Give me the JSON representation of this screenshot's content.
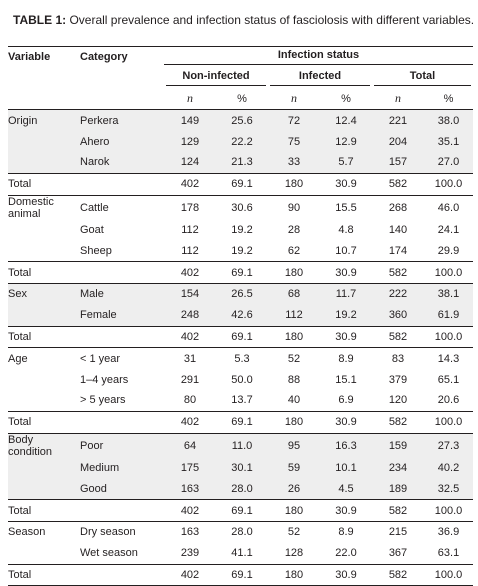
{
  "caption": {
    "label": "TABLE 1:",
    "text": "Overall prevalence and infection status of fasciolosis with different variables."
  },
  "headers": {
    "variable": "Variable",
    "category": "Category",
    "infection_status": "Infection status",
    "non_infected": "Non-infected",
    "infected": "Infected",
    "total": "Total",
    "n": "n",
    "pct": "%"
  },
  "groups": [
    {
      "variable": "Origin",
      "shaded": true,
      "rows": [
        {
          "category": "Perkera",
          "cells": [
            "149",
            "25.6",
            "72",
            "12.4",
            "221",
            "38.0"
          ]
        },
        {
          "category": "Ahero",
          "cells": [
            "129",
            "22.2",
            "75",
            "12.9",
            "204",
            "35.1"
          ]
        },
        {
          "category": "Narok",
          "cells": [
            "124",
            "21.3",
            "33",
            "5.7",
            "157",
            "27.0"
          ]
        }
      ],
      "total": {
        "label": "Total",
        "cells": [
          "402",
          "69.1",
          "180",
          "30.9",
          "582",
          "100.0"
        ]
      }
    },
    {
      "variable": "Domestic animal",
      "shaded": false,
      "rows": [
        {
          "category": "Cattle",
          "cells": [
            "178",
            "30.6",
            "90",
            "15.5",
            "268",
            "46.0"
          ]
        },
        {
          "category": "Goat",
          "cells": [
            "112",
            "19.2",
            "28",
            "4.8",
            "140",
            "24.1"
          ]
        },
        {
          "category": "Sheep",
          "cells": [
            "112",
            "19.2",
            "62",
            "10.7",
            "174",
            "29.9"
          ]
        }
      ],
      "total": {
        "label": "Total",
        "cells": [
          "402",
          "69.1",
          "180",
          "30.9",
          "582",
          "100.0"
        ]
      }
    },
    {
      "variable": "Sex",
      "shaded": true,
      "rows": [
        {
          "category": "Male",
          "cells": [
            "154",
            "26.5",
            "68",
            "11.7",
            "222",
            "38.1"
          ]
        },
        {
          "category": "Female",
          "cells": [
            "248",
            "42.6",
            "112",
            "19.2",
            "360",
            "61.9"
          ]
        }
      ],
      "total": {
        "label": "Total",
        "cells": [
          "402",
          "69.1",
          "180",
          "30.9",
          "582",
          "100.0"
        ]
      }
    },
    {
      "variable": "Age",
      "shaded": false,
      "rows": [
        {
          "category": "< 1 year",
          "cells": [
            "31",
            "5.3",
            "52",
            "8.9",
            "83",
            "14.3"
          ]
        },
        {
          "category": "1–4 years",
          "cells": [
            "291",
            "50.0",
            "88",
            "15.1",
            "379",
            "65.1"
          ]
        },
        {
          "category": "> 5 years",
          "cells": [
            "80",
            "13.7",
            "40",
            "6.9",
            "120",
            "20.6"
          ]
        }
      ],
      "total": {
        "label": "Total",
        "cells": [
          "402",
          "69.1",
          "180",
          "30.9",
          "582",
          "100.0"
        ]
      }
    },
    {
      "variable": "Body condition",
      "shaded": true,
      "rows": [
        {
          "category": "Poor",
          "cells": [
            "64",
            "11.0",
            "95",
            "16.3",
            "159",
            "27.3"
          ]
        },
        {
          "category": "Medium",
          "cells": [
            "175",
            "30.1",
            "59",
            "10.1",
            "234",
            "40.2"
          ]
        },
        {
          "category": "Good",
          "cells": [
            "163",
            "28.0",
            "26",
            "4.5",
            "189",
            "32.5"
          ]
        }
      ],
      "total": {
        "label": "Total",
        "cells": [
          "402",
          "69.1",
          "180",
          "30.9",
          "582",
          "100.0"
        ]
      }
    },
    {
      "variable": "Season",
      "shaded": false,
      "rows": [
        {
          "category": "Dry season",
          "cells": [
            "163",
            "28.0",
            "52",
            "8.9",
            "215",
            "36.9"
          ]
        },
        {
          "category": "Wet season",
          "cells": [
            "239",
            "41.1",
            "128",
            "22.0",
            "367",
            "63.1"
          ]
        }
      ],
      "total": {
        "label": "Total",
        "cells": [
          "402",
          "69.1",
          "180",
          "30.9",
          "582",
          "100.0"
        ]
      }
    }
  ],
  "colors": {
    "text": "#231f20",
    "shade": "#eeeeee",
    "rule": "#231f20"
  }
}
